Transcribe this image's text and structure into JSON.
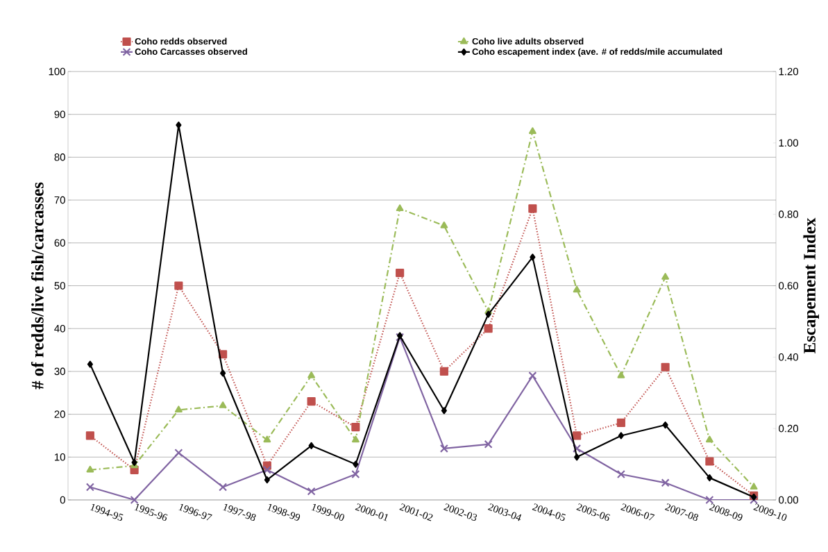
{
  "chart_data": {
    "type": "line",
    "categories": [
      "1994-95",
      "1995-96",
      "1996-97",
      "1997-98",
      "1998-99",
      "1999-00",
      "2000-01",
      "2001-02",
      "2002-03",
      "2003-04",
      "2004-05",
      "2005-06",
      "2006-07",
      "2007-08",
      "2008-09",
      "2009-10"
    ],
    "series": [
      {
        "name": "Coho redds observed",
        "color": "#c0504d",
        "marker": "square",
        "line_style": "dotted",
        "values": [
          15,
          7,
          50,
          34,
          8,
          23,
          17,
          53,
          30,
          40,
          68,
          15,
          18,
          31,
          9,
          1
        ]
      },
      {
        "name": "Coho live adults observed",
        "color": "#9bbb59",
        "marker": "triangle",
        "line_style": "dashed",
        "values": [
          7,
          8,
          21,
          22,
          14,
          29,
          14,
          68,
          64,
          44,
          86,
          49,
          29,
          52,
          14,
          3
        ]
      },
      {
        "name": "Coho Carcasses observed",
        "color": "#8064a2",
        "marker": "cross",
        "line_style": "solid",
        "values": [
          3,
          0,
          11,
          3,
          7,
          2,
          6,
          38,
          12,
          13,
          29,
          12,
          6,
          4,
          0,
          0
        ]
      },
      {
        "name": "Coho escapement index (ave. # of redds/mile accumulated",
        "color": "#000000",
        "marker": "diamond",
        "line_style": "solid",
        "axis": "y2",
        "values": [
          0.38,
          0.105,
          1.05,
          0.355,
          0.056,
          0.152,
          0.1,
          0.46,
          0.25,
          0.52,
          0.68,
          0.12,
          0.18,
          0.21,
          0.062,
          0.008
        ]
      }
    ],
    "ylabel": "# of redds/live fish/carcasses",
    "y2label": "Escapement Index",
    "ylim": [
      0,
      100
    ],
    "yticks": [
      0,
      10,
      20,
      30,
      40,
      50,
      60,
      70,
      80,
      90,
      100
    ],
    "y2lim": [
      0,
      1.2
    ],
    "y2ticks": [
      {
        "value": 0,
        "label": "0.00"
      },
      {
        "value": 0.2,
        "label": "0.20"
      },
      {
        "value": 0.4,
        "label": "0.40"
      },
      {
        "value": 0.6,
        "label": "0.60"
      },
      {
        "value": 0.8,
        "label": "0.80"
      },
      {
        "value": 1.0,
        "label": "1.00"
      },
      {
        "value": 1.2,
        "label": "1.20"
      }
    ],
    "grid": "y",
    "legend": "top"
  }
}
